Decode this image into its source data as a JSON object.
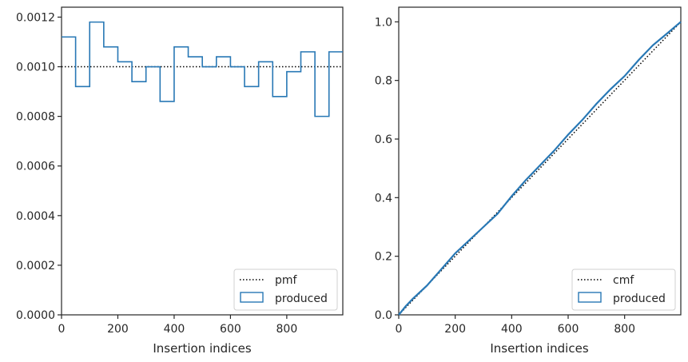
{
  "colors": {
    "series": "#2878b5",
    "reference": "#000000",
    "axis": "#262626",
    "legend_border": "#d0d0d0"
  },
  "chart_data": [
    {
      "type": "histogram-step",
      "xlabel": "Insertion indices",
      "ylabel": "",
      "xlim": [
        0,
        999
      ],
      "ylim": [
        0,
        0.00124
      ],
      "xticks": [
        0,
        200,
        400,
        600,
        800
      ],
      "yticks": [
        0.0,
        0.0002,
        0.0004,
        0.0006,
        0.0008,
        0.001,
        0.0012
      ],
      "ytick_labels": [
        "0.0000",
        "0.0002",
        "0.0004",
        "0.0006",
        "0.0008",
        "0.0010",
        "0.0012"
      ],
      "legend_position": "lower-right",
      "grid": false,
      "reference": {
        "name": "pmf",
        "style": "dotted",
        "y": 0.001
      },
      "series": [
        {
          "name": "produced",
          "bin_edges": [
            0,
            50,
            100,
            150,
            200,
            250,
            300,
            350,
            400,
            450,
            500,
            550,
            600,
            650,
            700,
            750,
            800,
            850,
            900,
            950,
            999
          ],
          "values": [
            0.00112,
            0.00092,
            0.00118,
            0.00108,
            0.00102,
            0.00094,
            0.001,
            0.00086,
            0.00108,
            0.00104,
            0.001,
            0.00104,
            0.001,
            0.00092,
            0.00102,
            0.00088,
            0.00098,
            0.00106,
            0.0008,
            0.00106
          ]
        }
      ]
    },
    {
      "type": "line",
      "xlabel": "Insertion indices",
      "ylabel": "",
      "xlim": [
        0,
        999
      ],
      "ylim": [
        0,
        1.05
      ],
      "xticks": [
        0,
        200,
        400,
        600,
        800
      ],
      "yticks": [
        0.0,
        0.2,
        0.4,
        0.6,
        0.8,
        1.0
      ],
      "ytick_labels": [
        "0.0",
        "0.2",
        "0.4",
        "0.6",
        "0.8",
        "1.0"
      ],
      "legend_position": "lower-right",
      "grid": false,
      "reference": {
        "name": "cmf",
        "style": "dotted",
        "x": [
          0,
          999
        ],
        "y": [
          0,
          1.0
        ]
      },
      "series": [
        {
          "name": "produced",
          "x": [
            0,
            25,
            50,
            100,
            150,
            200,
            250,
            300,
            350,
            400,
            450,
            500,
            550,
            600,
            650,
            700,
            750,
            800,
            850,
            900,
            950,
            999
          ],
          "y": [
            0,
            0.03,
            0.055,
            0.1,
            0.155,
            0.21,
            0.255,
            0.3,
            0.345,
            0.405,
            0.46,
            0.51,
            0.56,
            0.615,
            0.665,
            0.72,
            0.77,
            0.815,
            0.87,
            0.92,
            0.96,
            1.0
          ]
        }
      ]
    }
  ],
  "legend": {
    "left": {
      "items": [
        "pmf",
        "produced"
      ]
    },
    "right": {
      "items": [
        "cmf",
        "produced"
      ]
    }
  }
}
